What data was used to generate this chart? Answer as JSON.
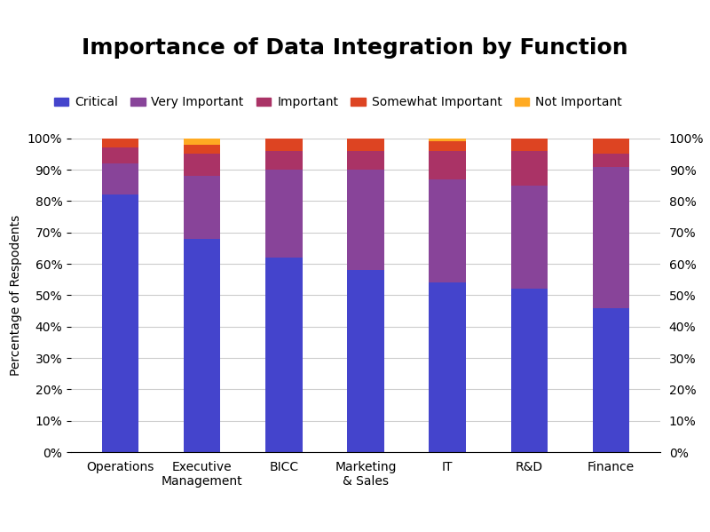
{
  "title": "Importance of Data Integration by Function",
  "ylabel": "Percentage of Respodents",
  "categories": [
    "Operations",
    "Executive\nManagement",
    "BICC",
    "Marketing\n& Sales",
    "IT",
    "R&D",
    "Finance"
  ],
  "series": [
    {
      "label": "Critical",
      "color": "#4444cc",
      "values": [
        82,
        68,
        62,
        58,
        54,
        52,
        46
      ]
    },
    {
      "label": "Very Important",
      "color": "#884499",
      "values": [
        10,
        20,
        28,
        32,
        33,
        33,
        45
      ]
    },
    {
      "label": "Important",
      "color": "#aa3366",
      "values": [
        5,
        7,
        6,
        6,
        9,
        11,
        4
      ]
    },
    {
      "label": "Somewhat Important",
      "color": "#dd4422",
      "values": [
        3,
        3,
        4,
        4,
        3,
        4,
        5
      ]
    },
    {
      "label": "Not Important",
      "color": "#ffaa22",
      "values": [
        0,
        2,
        0,
        0,
        1,
        0,
        0
      ]
    }
  ],
  "ylim": [
    0,
    100
  ],
  "yticks": [
    0,
    10,
    20,
    30,
    40,
    50,
    60,
    70,
    80,
    90,
    100
  ],
  "ytick_labels": [
    "0%",
    "10%",
    "20%",
    "30%",
    "40%",
    "50%",
    "60%",
    "70%",
    "80%",
    "90%",
    "100%"
  ],
  "background_color": "#ffffff",
  "bar_width": 0.45,
  "grid_color": "#cccccc",
  "title_fontsize": 18,
  "axis_fontsize": 10,
  "legend_fontsize": 10
}
